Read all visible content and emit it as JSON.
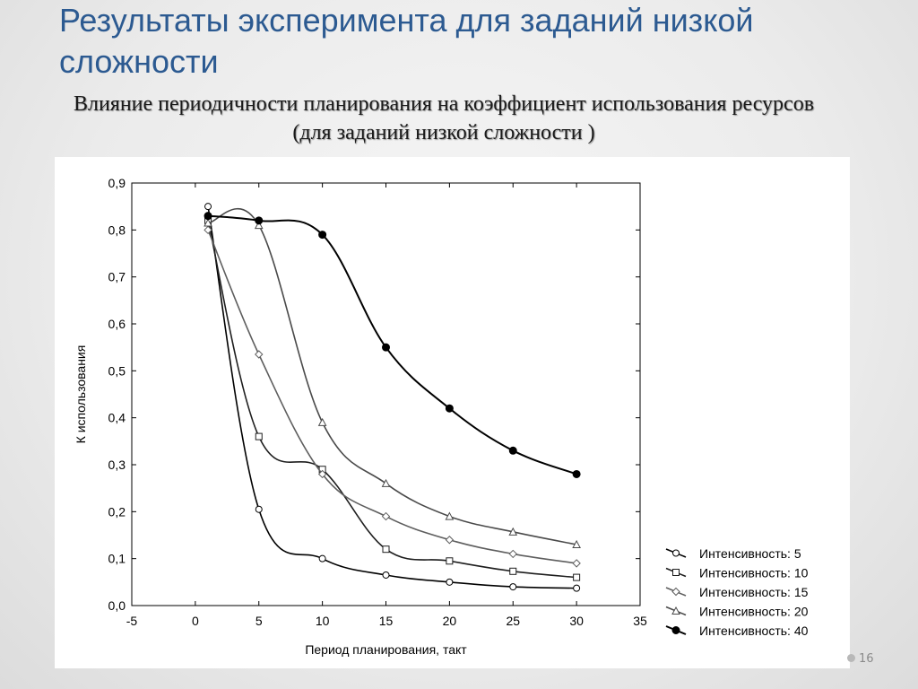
{
  "slide": {
    "title": "Результаты эксперимента для заданий низкой сложности",
    "subtitle": "Влияние периодичности планирования на коэффициент использования ресурсов (для заданий низкой сложности )",
    "page_number": "16"
  },
  "chart_data": {
    "type": "line",
    "xlabel": "Период планирования, такт",
    "ylabel": "К использования",
    "xlim": [
      -5,
      35
    ],
    "ylim": [
      0,
      0.9
    ],
    "x_ticks": [
      -5,
      0,
      5,
      10,
      15,
      20,
      25,
      30,
      35
    ],
    "x_tick_labels": [
      "-5",
      "0",
      "5",
      "10",
      "15",
      "20",
      "25",
      "30",
      "35"
    ],
    "y_ticks": [
      0,
      0.1,
      0.2,
      0.3,
      0.4,
      0.5,
      0.6,
      0.7,
      0.8,
      0.9
    ],
    "y_tick_labels": [
      "0,0",
      "0,1",
      "0,2",
      "0,3",
      "0,4",
      "0,5",
      "0,6",
      "0,7",
      "0,8",
      "0,9"
    ],
    "grid": false,
    "legend_position": "bottom-right",
    "series": [
      {
        "name": "Интенсивность: 5",
        "marker": "circle-open",
        "color": "#000000",
        "x": [
          1,
          5,
          10,
          15,
          20,
          25,
          30
        ],
        "y": [
          0.85,
          0.205,
          0.1,
          0.065,
          0.05,
          0.04,
          0.037
        ]
      },
      {
        "name": "Интенсивность: 10",
        "marker": "square-open",
        "color": "#1e1e1e",
        "x": [
          1,
          5,
          10,
          15,
          20,
          25,
          30
        ],
        "y": [
          0.82,
          0.36,
          0.29,
          0.12,
          0.095,
          0.073,
          0.06
        ]
      },
      {
        "name": "Интенсивность: 15",
        "marker": "diamond-open",
        "color": "#5e5e5e",
        "x": [
          1,
          5,
          10,
          15,
          20,
          25,
          30
        ],
        "y": [
          0.8,
          0.535,
          0.28,
          0.19,
          0.14,
          0.11,
          0.09
        ]
      },
      {
        "name": "Интенсивность: 20",
        "marker": "triangle-open",
        "color": "#4a4a4a",
        "x": [
          1,
          5,
          10,
          15,
          20,
          25,
          30
        ],
        "y": [
          0.815,
          0.81,
          0.39,
          0.26,
          0.19,
          0.157,
          0.13
        ]
      },
      {
        "name": "Интенсивность: 40",
        "marker": "circle-filled",
        "color": "#000000",
        "x": [
          1,
          5,
          10,
          15,
          20,
          25,
          30
        ],
        "y": [
          0.83,
          0.82,
          0.79,
          0.55,
          0.42,
          0.33,
          0.28
        ]
      }
    ]
  }
}
